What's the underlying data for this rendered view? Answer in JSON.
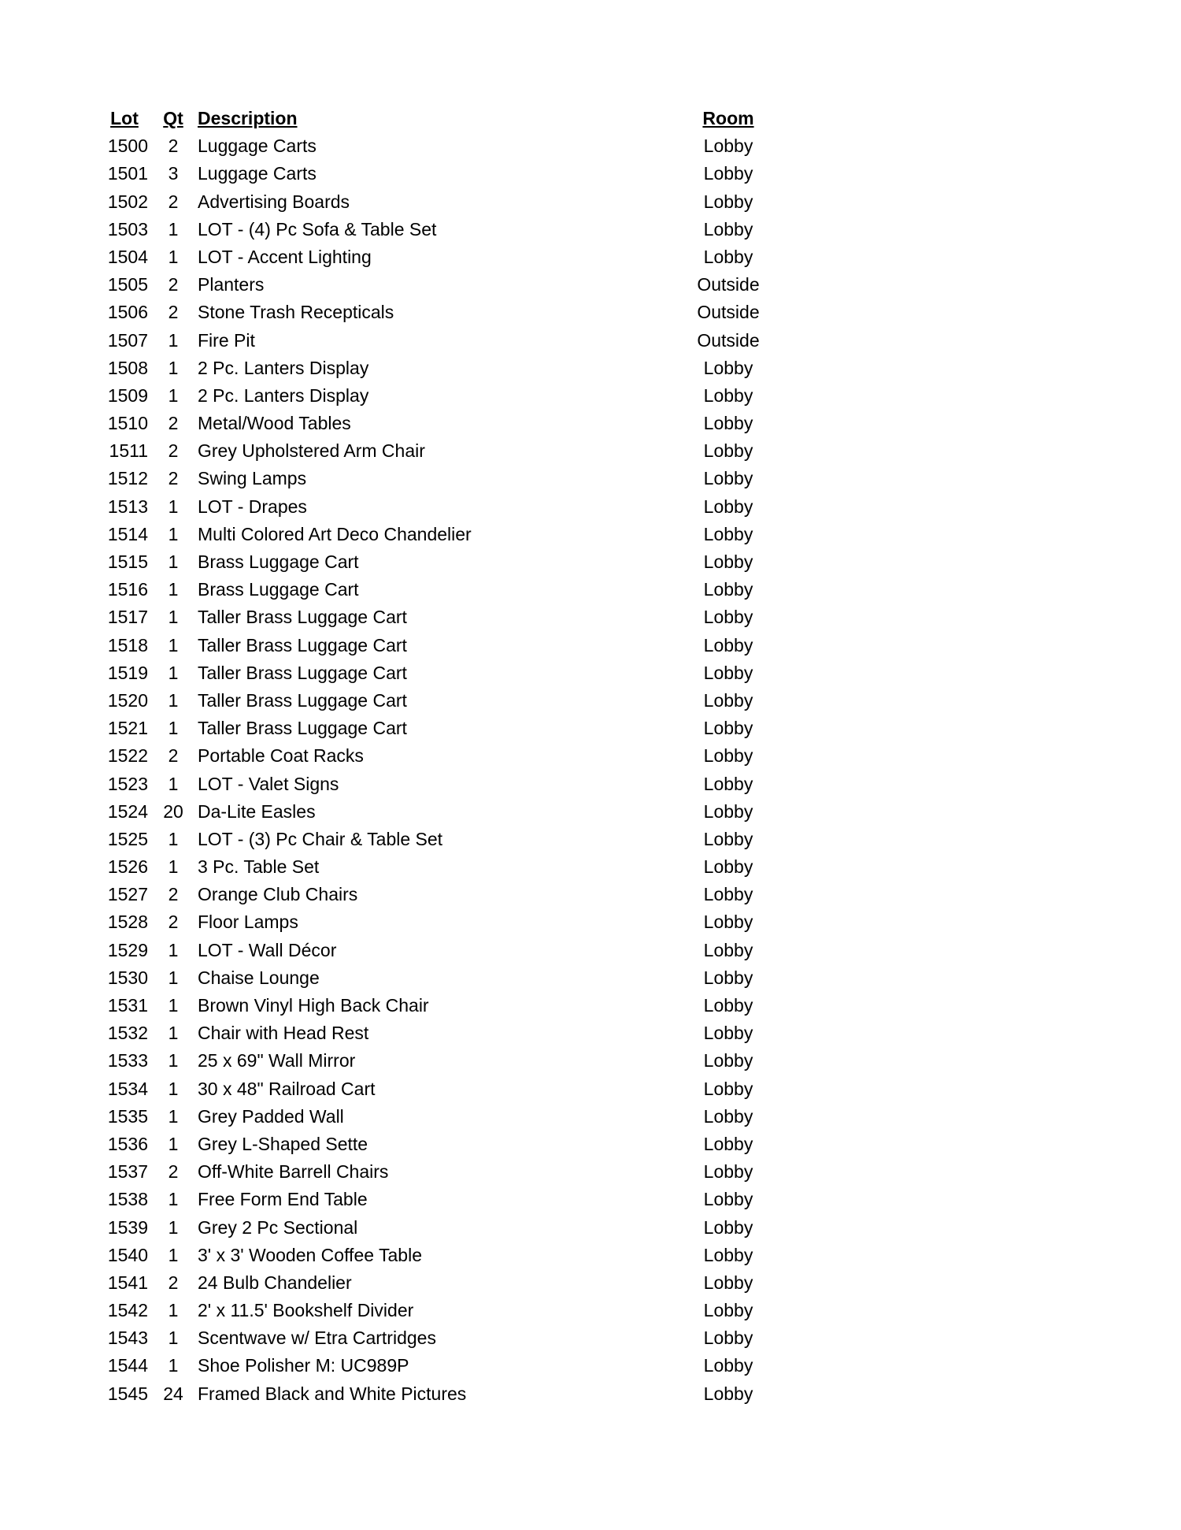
{
  "headers": {
    "lot": "Lot",
    "qt": "Qt",
    "description": "Description",
    "room": "Room"
  },
  "rows": [
    [
      "1500",
      "2",
      "Luggage Carts",
      "Lobby"
    ],
    [
      "1501",
      "3",
      "Luggage Carts",
      "Lobby"
    ],
    [
      "1502",
      "2",
      "Advertising Boards",
      "Lobby"
    ],
    [
      "1503",
      "1",
      "LOT - (4) Pc Sofa & Table Set",
      "Lobby"
    ],
    [
      "1504",
      "1",
      "LOT - Accent Lighting",
      "Lobby"
    ],
    [
      "1505",
      "2",
      "Planters",
      "Outside"
    ],
    [
      "1506",
      "2",
      "Stone Trash Recepticals",
      "Outside"
    ],
    [
      "1507",
      "1",
      "Fire Pit",
      "Outside"
    ],
    [
      "1508",
      "1",
      "2 Pc. Lanters Display",
      "Lobby"
    ],
    [
      "1509",
      "1",
      "2 Pc. Lanters Display",
      "Lobby"
    ],
    [
      "1510",
      "2",
      "Metal/Wood Tables",
      "Lobby"
    ],
    [
      "1511",
      "2",
      "Grey Upholstered Arm Chair",
      "Lobby"
    ],
    [
      "1512",
      "2",
      "Swing Lamps",
      "Lobby"
    ],
    [
      "1513",
      "1",
      "LOT - Drapes",
      "Lobby"
    ],
    [
      "1514",
      "1",
      "Multi Colored Art Deco Chandelier",
      "Lobby"
    ],
    [
      "1515",
      "1",
      "Brass Luggage Cart",
      "Lobby"
    ],
    [
      "1516",
      "1",
      "Brass Luggage Cart",
      "Lobby"
    ],
    [
      "1517",
      "1",
      "Taller Brass Luggage Cart",
      "Lobby"
    ],
    [
      "1518",
      "1",
      "Taller Brass Luggage Cart",
      "Lobby"
    ],
    [
      "1519",
      "1",
      "Taller Brass Luggage Cart",
      "Lobby"
    ],
    [
      "1520",
      "1",
      "Taller Brass Luggage Cart",
      "Lobby"
    ],
    [
      "1521",
      "1",
      "Taller Brass Luggage Cart",
      "Lobby"
    ],
    [
      "1522",
      "2",
      "Portable Coat Racks",
      "Lobby"
    ],
    [
      "1523",
      "1",
      "LOT - Valet Signs",
      "Lobby"
    ],
    [
      "1524",
      "20",
      "Da-Lite Easles",
      "Lobby"
    ],
    [
      "1525",
      "1",
      "LOT - (3) Pc Chair & Table Set",
      "Lobby"
    ],
    [
      "1526",
      "1",
      "3 Pc. Table Set",
      "Lobby"
    ],
    [
      "1527",
      "2",
      "Orange Club Chairs",
      "Lobby"
    ],
    [
      "1528",
      "2",
      "Floor Lamps",
      "Lobby"
    ],
    [
      "1529",
      "1",
      "LOT - Wall Décor",
      "Lobby"
    ],
    [
      "1530",
      "1",
      "Chaise Lounge",
      "Lobby"
    ],
    [
      "1531",
      "1",
      "Brown Vinyl High Back Chair",
      "Lobby"
    ],
    [
      "1532",
      "1",
      "Chair with Head Rest",
      "Lobby"
    ],
    [
      "1533",
      "1",
      "25 x 69\" Wall Mirror",
      "Lobby"
    ],
    [
      "1534",
      "1",
      "30 x 48\" Railroad Cart",
      "Lobby"
    ],
    [
      "1535",
      "1",
      "Grey Padded Wall",
      "Lobby"
    ],
    [
      "1536",
      "1",
      "Grey L-Shaped Sette",
      "Lobby"
    ],
    [
      "1537",
      "2",
      "Off-White Barrell Chairs",
      "Lobby"
    ],
    [
      "1538",
      "1",
      "Free Form End Table",
      "Lobby"
    ],
    [
      "1539",
      "1",
      "Grey 2 Pc Sectional",
      "Lobby"
    ],
    [
      "1540",
      "1",
      "3' x 3' Wooden Coffee Table",
      "Lobby"
    ],
    [
      "1541",
      "2",
      "24 Bulb Chandelier",
      "Lobby"
    ],
    [
      "1542",
      "1",
      "2' x 11.5' Bookshelf Divider",
      "Lobby"
    ],
    [
      "1543",
      "1",
      "Scentwave w/ Etra Cartridges",
      "Lobby"
    ],
    [
      "1544",
      "1",
      "Shoe Polisher M: UC989P",
      "Lobby"
    ],
    [
      "1545",
      "24",
      "Framed Black and White Pictures",
      "Lobby"
    ]
  ]
}
